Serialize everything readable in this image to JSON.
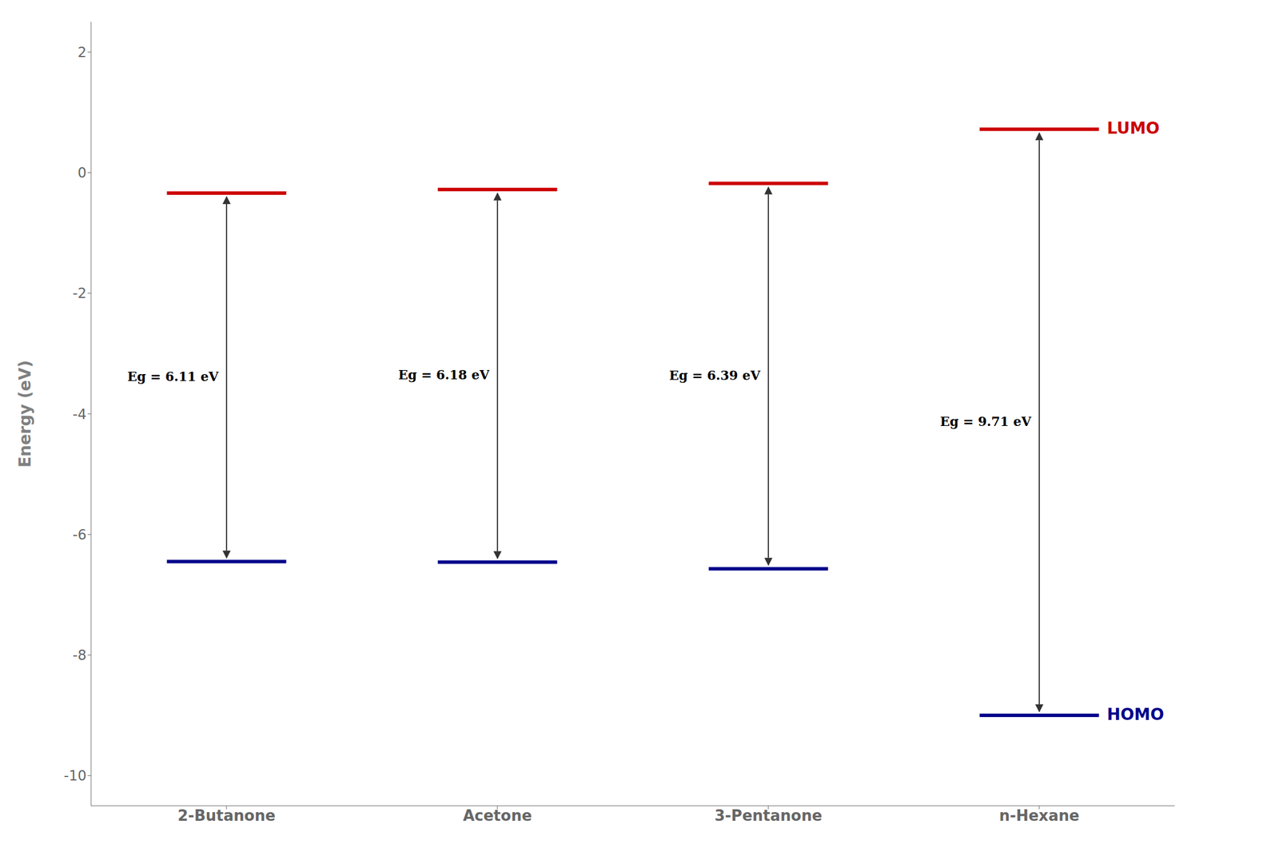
{
  "chart_data": {
    "type": "levels",
    "categories": [
      "2-Butanone",
      "Acetone",
      "3-Pentanone",
      "n-Hexane"
    ],
    "series": [
      {
        "name": "LUMO",
        "color": "#cc0000",
        "values": [
          -0.34,
          -0.28,
          -0.18,
          0.72
        ]
      },
      {
        "name": "HOMO",
        "color": "#00008b",
        "values": [
          -6.45,
          -6.46,
          -6.57,
          -9.0
        ]
      }
    ],
    "annotations": [
      "Eg = 6.11 eV",
      "Eg = 6.18 eV",
      "Eg = 6.39 eV",
      "Eg = 9.71 eV"
    ],
    "ylabel": "Energy (eV)",
    "ylim": [
      -10.5,
      2.5
    ],
    "yticks": [
      -10,
      -8,
      -6,
      -4,
      -2,
      0,
      2
    ]
  }
}
